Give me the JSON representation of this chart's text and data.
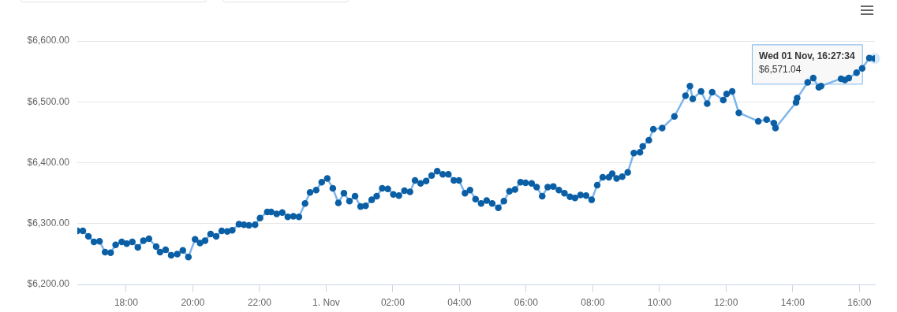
{
  "chart_data": {
    "type": "line",
    "x": [
      "--10-31T16:32",
      "--10-31T16:42",
      "--10-31T16:52",
      "--10-31T17:02",
      "--10-31T17:12",
      "--10-31T17:22",
      "--10-31T17:32",
      "--10-31T17:41",
      "--10-31T17:52",
      "--10-31T18:01",
      "--10-31T18:11",
      "--10-31T18:21",
      "--10-31T18:31",
      "--10-31T18:41",
      "--10-31T18:54",
      "--10-31T19:01",
      "--10-31T19:11",
      "--10-31T19:21",
      "--10-31T19:32",
      "--10-31T19:42",
      "--10-31T19:52",
      "--10-31T20:04",
      "--10-31T20:13",
      "--10-31T20:22",
      "--10-31T20:32",
      "--10-31T20:42",
      "--10-31T20:52",
      "--10-31T21:02",
      "--10-31T21:11",
      "--10-31T21:23",
      "--10-31T21:32",
      "--10-31T21:41",
      "--10-31T21:52",
      "--10-31T22:01",
      "--10-31T22:14",
      "--10-31T22:21",
      "--10-31T22:31",
      "--10-31T22:41",
      "--10-31T22:51",
      "--10-31T23:01",
      "--10-31T23:11",
      "--10-31T23:22",
      "--10-31T23:31",
      "--10-31T23:42",
      "--10-31T23:52",
      "--11-01T00:02",
      "--11-01T00:12",
      "--11-01T00:22",
      "--11-01T00:32",
      "--11-01T00:42",
      "--11-01T00:52",
      "--11-01T01:02",
      "--11-01T01:11",
      "--11-01T01:22",
      "--11-01T01:31",
      "--11-01T01:41",
      "--11-01T01:51",
      "--11-01T02:01",
      "--11-01T02:11",
      "--11-01T02:21",
      "--11-01T02:31",
      "--11-01T02:40",
      "--11-01T02:50",
      "--11-01T03:00",
      "--11-01T03:10",
      "--11-01T03:20",
      "--11-01T03:30",
      "--11-01T03:40",
      "--11-01T03:50",
      "--11-01T03:59",
      "--11-01T04:10",
      "--11-01T04:19",
      "--11-01T04:29",
      "--11-01T04:39",
      "--11-01T04:49",
      "--11-01T04:59",
      "--11-01T05:10",
      "--11-01T05:20",
      "--11-01T05:30",
      "--11-01T05:40",
      "--11-01T05:50",
      "--11-01T05:59",
      "--11-01T06:10",
      "--11-01T06:19",
      "--11-01T06:29",
      "--11-01T06:39",
      "--11-01T06:49",
      "--11-01T06:59",
      "--11-01T07:09",
      "--11-01T07:19",
      "--11-01T07:28",
      "--11-01T07:38",
      "--11-01T07:48",
      "--11-01T07:58",
      "--11-01T08:08",
      "--11-01T08:18",
      "--11-01T08:29",
      "--11-01T08:35",
      "--11-01T08:43",
      "--11-01T08:53",
      "--11-01T09:03",
      "--11-01T09:14",
      "--11-01T09:25",
      "--11-01T09:30",
      "--11-01T09:41",
      "--11-01T09:49",
      "--11-01T10:05",
      "--11-01T10:27",
      "--11-01T10:47",
      "--11-01T10:55",
      "--11-01T11:00",
      "--11-01T11:15",
      "--11-01T11:26",
      "--11-01T11:35",
      "--11-01T11:55",
      "--11-01T12:01",
      "--11-01T12:11",
      "--11-01T12:23",
      "--11-01T12:58",
      "--11-01T13:13",
      "--11-01T13:26",
      "--11-01T13:29",
      "--11-01T14:06",
      "--11-01T14:08",
      "--11-01T14:27",
      "--11-01T14:37",
      "--11-01T14:47",
      "--11-01T14:51",
      "--11-01T15:27",
      "--11-01T15:34",
      "--11-01T15:41",
      "--11-01T15:55",
      "--11-01T16:05",
      "--11-01T16:18",
      "--11-01T16:27:34"
    ],
    "series": [
      {
        "color": "#7cb5ec",
        "values": [
          6288,
          6288,
          6279,
          6270,
          6271,
          6253,
          6252,
          6265,
          6270,
          6267,
          6270,
          6261,
          6272,
          6275,
          6262,
          6253,
          6257,
          6248,
          6250,
          6256,
          6245,
          6274,
          6268,
          6272,
          6283,
          6279,
          6288,
          6287,
          6289,
          6299,
          6298,
          6297,
          6298,
          6309,
          6319,
          6319,
          6316,
          6318,
          6311,
          6312,
          6311,
          6333,
          6351,
          6355,
          6368,
          6374,
          6358,
          6334,
          6350,
          6337,
          6345,
          6328,
          6329,
          6339,
          6345,
          6358,
          6357,
          6348,
          6346,
          6354,
          6352,
          6371,
          6366,
          6370,
          6379,
          6386,
          6381,
          6381,
          6371,
          6371,
          6350,
          6355,
          6340,
          6333,
          6338,
          6333,
          6326,
          6337,
          6353,
          6356,
          6368,
          6367,
          6366,
          6360,
          6345,
          6360,
          6361,
          6355,
          6350,
          6344,
          6342,
          6347,
          6346,
          6339,
          6363,
          6376,
          6376,
          6382,
          6374,
          6377,
          6384,
          6416,
          6417,
          6427,
          6437,
          6455,
          6457,
          6476,
          6510,
          6526,
          6505,
          6517,
          6497,
          6516,
          6503,
          6513,
          6517,
          6482,
          6468,
          6471,
          6465,
          6457,
          6499,
          6506,
          6532,
          6539,
          6524,
          6526,
          6538,
          6536,
          6539,
          6548,
          6555,
          6572,
          6571.04
        ]
      }
    ],
    "xlim": [
      "--10-31T16:32",
      "--11-01T16:28"
    ],
    "xticks": [
      {
        "value": "--10-31T18:00",
        "label": "18:00"
      },
      {
        "value": "--10-31T20:00",
        "label": "20:00"
      },
      {
        "value": "--10-31T22:00",
        "label": "22:00"
      },
      {
        "value": "--11-01T00:00",
        "label": "1. Nov"
      },
      {
        "value": "--11-01T02:00",
        "label": "02:00"
      },
      {
        "value": "--11-01T04:00",
        "label": "04:00"
      },
      {
        "value": "--11-01T06:00",
        "label": "06:00"
      },
      {
        "value": "--11-01T08:00",
        "label": "08:00"
      },
      {
        "value": "--11-01T10:00",
        "label": "10:00"
      },
      {
        "value": "--11-01T12:00",
        "label": "12:00"
      },
      {
        "value": "--11-01T14:00",
        "label": "14:00"
      },
      {
        "value": "--11-01T16:00",
        "label": "16:00"
      }
    ],
    "ylim": [
      6200,
      6600
    ],
    "yticks": [
      {
        "value": 6200,
        "label": "$6,200.00"
      },
      {
        "value": 6300,
        "label": "$6,300.00"
      },
      {
        "value": 6400,
        "label": "$6,400.00"
      },
      {
        "value": 6500,
        "label": "$6,500.00"
      },
      {
        "value": 6600,
        "label": "$6,600.00"
      }
    ],
    "grid": "y",
    "legend": false,
    "marker": "circle",
    "line_style": "solid",
    "annotations": [
      {
        "text": "Wed 01 Nov, 16:27:34\n$6,571.04",
        "x": "--11-01T16:27:34",
        "y": 6571.04
      }
    ]
  }
}
